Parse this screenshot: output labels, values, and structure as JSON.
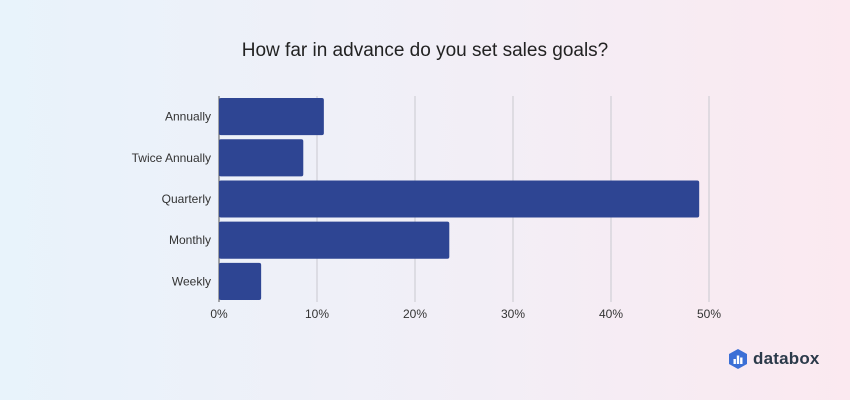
{
  "chart_data": {
    "type": "bar",
    "orientation": "horizontal",
    "title": "How far in advance do you set sales goals?",
    "categories": [
      "Annually",
      "Twice Annually",
      "Quarterly",
      "Monthly",
      "Weekly"
    ],
    "values": [
      10.7,
      8.6,
      49.0,
      23.5,
      4.3
    ],
    "unit": "%",
    "xlim": [
      0,
      50
    ],
    "x_ticks": [
      0,
      10,
      20,
      30,
      40,
      50
    ],
    "x_tick_labels": [
      "0%",
      "10%",
      "20%",
      "30%",
      "40%",
      "50%"
    ],
    "grid": true,
    "bar_color": "#2e4593"
  },
  "brand": {
    "name": "databox",
    "color": "#3b6fd6",
    "icon": "databox-logo-icon"
  }
}
